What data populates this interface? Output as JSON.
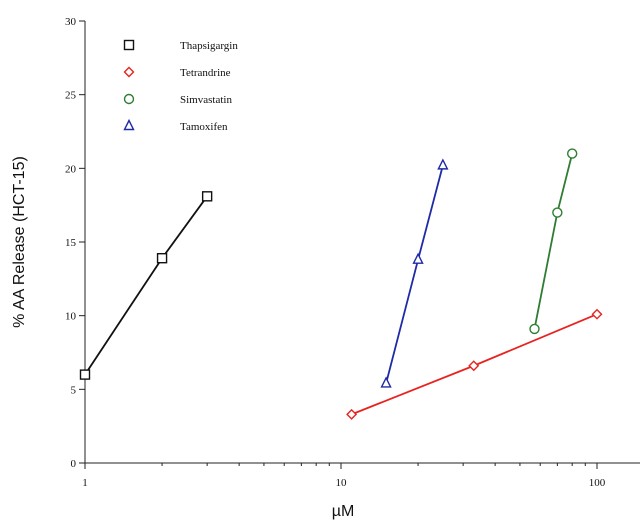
{
  "chart_data": {
    "type": "line",
    "title": "",
    "xlabel": "µM",
    "ylabel": "% AA Release (HCT-15)",
    "x_scale": "log",
    "xlim": [
      1,
      100
    ],
    "ylim": [
      0,
      30
    ],
    "x_ticks": [
      1,
      10,
      100
    ],
    "x_tick_labels": [
      "1",
      "10",
      "100"
    ],
    "y_ticks": [
      0,
      5,
      10,
      15,
      20,
      25,
      30
    ],
    "y_tick_labels": [
      "0",
      "5",
      "10",
      "15",
      "20",
      "25",
      "30"
    ],
    "grid": false,
    "legend_position": "top-left",
    "series": [
      {
        "name": "Thapsigargin",
        "marker": "square",
        "color": "#111111",
        "x": [
          1,
          2,
          3
        ],
        "y": [
          6.0,
          13.9,
          18.1
        ]
      },
      {
        "name": "Tetrandrine",
        "marker": "diamond",
        "color": "#e8231f",
        "x": [
          11,
          33,
          100
        ],
        "y": [
          3.3,
          6.6,
          10.1
        ]
      },
      {
        "name": "Simvastatin",
        "marker": "circle",
        "color": "#2e7d32",
        "x": [
          57,
          70,
          80
        ],
        "y": [
          9.1,
          17.0,
          21.0
        ]
      },
      {
        "name": "Tamoxifen",
        "marker": "triangle",
        "color": "#1f2aa8",
        "x": [
          15,
          20,
          25
        ],
        "y": [
          5.4,
          13.8,
          20.2
        ]
      }
    ]
  }
}
